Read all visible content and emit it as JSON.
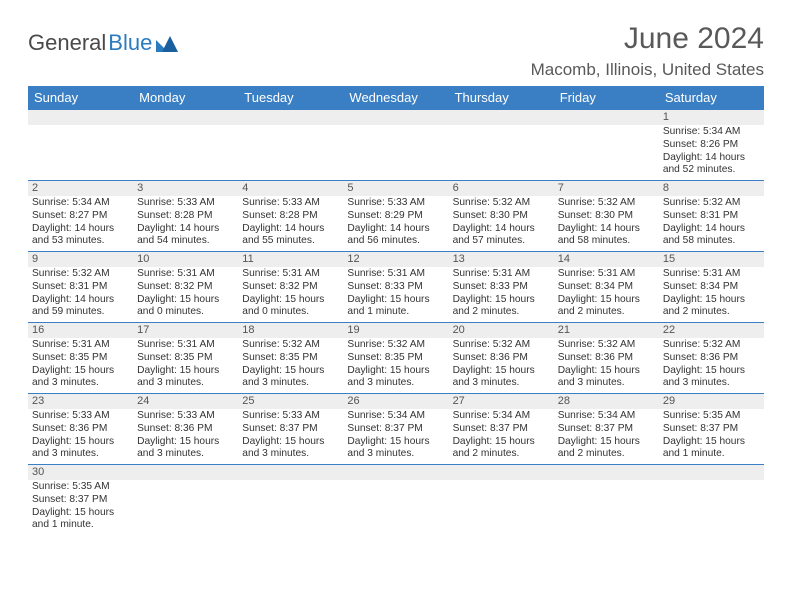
{
  "logo": {
    "dark": "General",
    "blue": "Blue"
  },
  "title": "June 2024",
  "location": "Macomb, Illinois, United States",
  "header_bg": "#3a7fc4",
  "dow": [
    "Sunday",
    "Monday",
    "Tuesday",
    "Wednesday",
    "Thursday",
    "Friday",
    "Saturday"
  ],
  "weeks": [
    {
      "nums": [
        "",
        "",
        "",
        "",
        "",
        "",
        "1"
      ],
      "cells": [
        null,
        null,
        null,
        null,
        null,
        null,
        {
          "sunrise": "Sunrise: 5:34 AM",
          "sunset": "Sunset: 8:26 PM",
          "day1": "Daylight: 14 hours",
          "day2": "and 52 minutes."
        }
      ]
    },
    {
      "nums": [
        "2",
        "3",
        "4",
        "5",
        "6",
        "7",
        "8"
      ],
      "cells": [
        {
          "sunrise": "Sunrise: 5:34 AM",
          "sunset": "Sunset: 8:27 PM",
          "day1": "Daylight: 14 hours",
          "day2": "and 53 minutes."
        },
        {
          "sunrise": "Sunrise: 5:33 AM",
          "sunset": "Sunset: 8:28 PM",
          "day1": "Daylight: 14 hours",
          "day2": "and 54 minutes."
        },
        {
          "sunrise": "Sunrise: 5:33 AM",
          "sunset": "Sunset: 8:28 PM",
          "day1": "Daylight: 14 hours",
          "day2": "and 55 minutes."
        },
        {
          "sunrise": "Sunrise: 5:33 AM",
          "sunset": "Sunset: 8:29 PM",
          "day1": "Daylight: 14 hours",
          "day2": "and 56 minutes."
        },
        {
          "sunrise": "Sunrise: 5:32 AM",
          "sunset": "Sunset: 8:30 PM",
          "day1": "Daylight: 14 hours",
          "day2": "and 57 minutes."
        },
        {
          "sunrise": "Sunrise: 5:32 AM",
          "sunset": "Sunset: 8:30 PM",
          "day1": "Daylight: 14 hours",
          "day2": "and 58 minutes."
        },
        {
          "sunrise": "Sunrise: 5:32 AM",
          "sunset": "Sunset: 8:31 PM",
          "day1": "Daylight: 14 hours",
          "day2": "and 58 minutes."
        }
      ]
    },
    {
      "nums": [
        "9",
        "10",
        "11",
        "12",
        "13",
        "14",
        "15"
      ],
      "cells": [
        {
          "sunrise": "Sunrise: 5:32 AM",
          "sunset": "Sunset: 8:31 PM",
          "day1": "Daylight: 14 hours",
          "day2": "and 59 minutes."
        },
        {
          "sunrise": "Sunrise: 5:31 AM",
          "sunset": "Sunset: 8:32 PM",
          "day1": "Daylight: 15 hours",
          "day2": "and 0 minutes."
        },
        {
          "sunrise": "Sunrise: 5:31 AM",
          "sunset": "Sunset: 8:32 PM",
          "day1": "Daylight: 15 hours",
          "day2": "and 0 minutes."
        },
        {
          "sunrise": "Sunrise: 5:31 AM",
          "sunset": "Sunset: 8:33 PM",
          "day1": "Daylight: 15 hours",
          "day2": "and 1 minute."
        },
        {
          "sunrise": "Sunrise: 5:31 AM",
          "sunset": "Sunset: 8:33 PM",
          "day1": "Daylight: 15 hours",
          "day2": "and 2 minutes."
        },
        {
          "sunrise": "Sunrise: 5:31 AM",
          "sunset": "Sunset: 8:34 PM",
          "day1": "Daylight: 15 hours",
          "day2": "and 2 minutes."
        },
        {
          "sunrise": "Sunrise: 5:31 AM",
          "sunset": "Sunset: 8:34 PM",
          "day1": "Daylight: 15 hours",
          "day2": "and 2 minutes."
        }
      ]
    },
    {
      "nums": [
        "16",
        "17",
        "18",
        "19",
        "20",
        "21",
        "22"
      ],
      "cells": [
        {
          "sunrise": "Sunrise: 5:31 AM",
          "sunset": "Sunset: 8:35 PM",
          "day1": "Daylight: 15 hours",
          "day2": "and 3 minutes."
        },
        {
          "sunrise": "Sunrise: 5:31 AM",
          "sunset": "Sunset: 8:35 PM",
          "day1": "Daylight: 15 hours",
          "day2": "and 3 minutes."
        },
        {
          "sunrise": "Sunrise: 5:32 AM",
          "sunset": "Sunset: 8:35 PM",
          "day1": "Daylight: 15 hours",
          "day2": "and 3 minutes."
        },
        {
          "sunrise": "Sunrise: 5:32 AM",
          "sunset": "Sunset: 8:35 PM",
          "day1": "Daylight: 15 hours",
          "day2": "and 3 minutes."
        },
        {
          "sunrise": "Sunrise: 5:32 AM",
          "sunset": "Sunset: 8:36 PM",
          "day1": "Daylight: 15 hours",
          "day2": "and 3 minutes."
        },
        {
          "sunrise": "Sunrise: 5:32 AM",
          "sunset": "Sunset: 8:36 PM",
          "day1": "Daylight: 15 hours",
          "day2": "and 3 minutes."
        },
        {
          "sunrise": "Sunrise: 5:32 AM",
          "sunset": "Sunset: 8:36 PM",
          "day1": "Daylight: 15 hours",
          "day2": "and 3 minutes."
        }
      ]
    },
    {
      "nums": [
        "23",
        "24",
        "25",
        "26",
        "27",
        "28",
        "29"
      ],
      "cells": [
        {
          "sunrise": "Sunrise: 5:33 AM",
          "sunset": "Sunset: 8:36 PM",
          "day1": "Daylight: 15 hours",
          "day2": "and 3 minutes."
        },
        {
          "sunrise": "Sunrise: 5:33 AM",
          "sunset": "Sunset: 8:36 PM",
          "day1": "Daylight: 15 hours",
          "day2": "and 3 minutes."
        },
        {
          "sunrise": "Sunrise: 5:33 AM",
          "sunset": "Sunset: 8:37 PM",
          "day1": "Daylight: 15 hours",
          "day2": "and 3 minutes."
        },
        {
          "sunrise": "Sunrise: 5:34 AM",
          "sunset": "Sunset: 8:37 PM",
          "day1": "Daylight: 15 hours",
          "day2": "and 3 minutes."
        },
        {
          "sunrise": "Sunrise: 5:34 AM",
          "sunset": "Sunset: 8:37 PM",
          "day1": "Daylight: 15 hours",
          "day2": "and 2 minutes."
        },
        {
          "sunrise": "Sunrise: 5:34 AM",
          "sunset": "Sunset: 8:37 PM",
          "day1": "Daylight: 15 hours",
          "day2": "and 2 minutes."
        },
        {
          "sunrise": "Sunrise: 5:35 AM",
          "sunset": "Sunset: 8:37 PM",
          "day1": "Daylight: 15 hours",
          "day2": "and 1 minute."
        }
      ]
    },
    {
      "nums": [
        "30",
        "",
        "",
        "",
        "",
        "",
        ""
      ],
      "cells": [
        {
          "sunrise": "Sunrise: 5:35 AM",
          "sunset": "Sunset: 8:37 PM",
          "day1": "Daylight: 15 hours",
          "day2": "and 1 minute."
        },
        null,
        null,
        null,
        null,
        null,
        null
      ]
    }
  ]
}
